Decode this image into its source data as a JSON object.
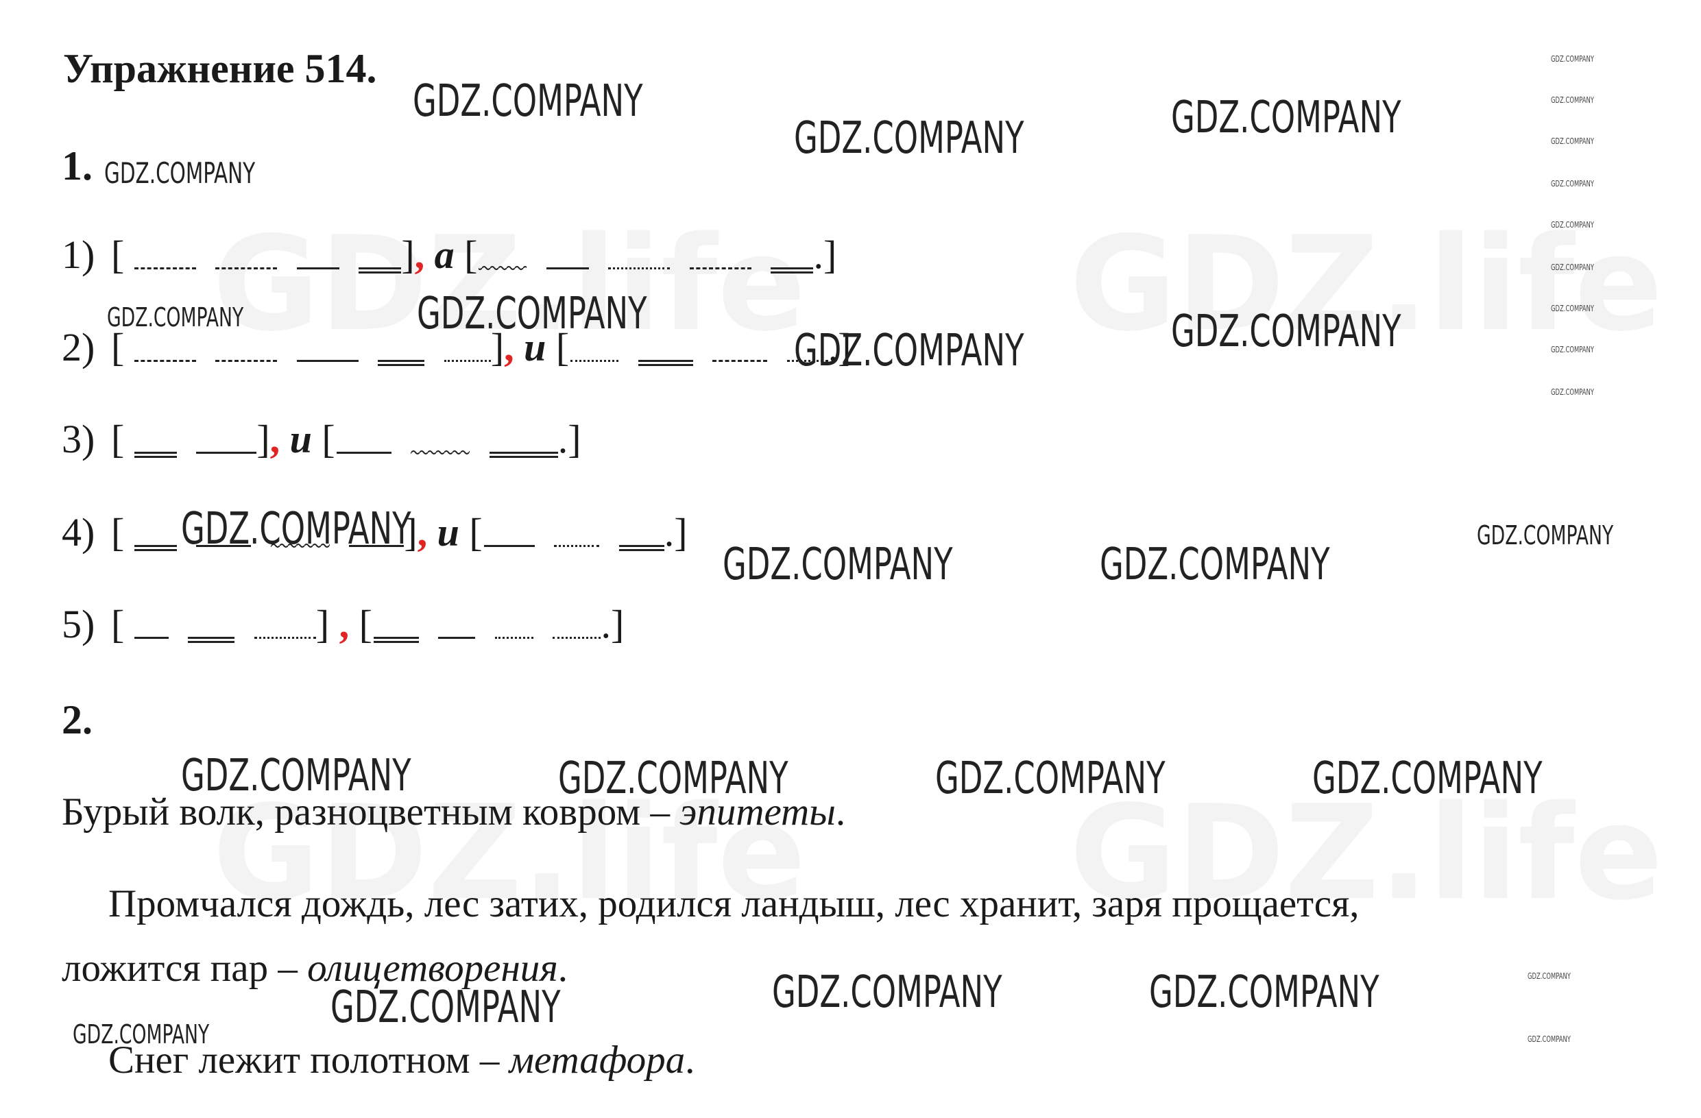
{
  "title": "Упражнение 514.",
  "section1": "1.",
  "section2": "2.",
  "schemes": [
    {
      "num": "1)",
      "open": "[",
      "close": "]",
      "comma": ",",
      "conj": "а",
      "open2": "[",
      "close2": "]"
    },
    {
      "num": "2)",
      "open": "[",
      "close": "]",
      "comma": ",",
      "conj": "и",
      "open2": "[",
      "close2": "]"
    },
    {
      "num": "3)",
      "open": "[",
      "close": "]",
      "comma": ",",
      "conj": "и",
      "open2": "[",
      "close2": "]"
    },
    {
      "num": "4)",
      "open": "[",
      "close": "]",
      "comma": ",",
      "conj": "и",
      "open2": "[",
      "close2": "]"
    },
    {
      "num": "5)",
      "open": "[",
      "close": "]",
      "comma": ",",
      "conj": "",
      "open2": "[",
      "close2": "]"
    }
  ],
  "period": ".",
  "lines": {
    "epithets": {
      "text": "Бурый волк, разноцветным ковром – ",
      "term": "эпитеты",
      "end": "."
    },
    "personification_1": {
      "text": "Промчался дождь, лес затих, родился ландыш, лес хранит, заря прощается,"
    },
    "personification_2": {
      "text": "ложится пар – ",
      "term": "олицетворения",
      "end": "."
    },
    "metaphor": {
      "text": "Снег лежит полотном – ",
      "term": "метафора",
      "end": "."
    }
  },
  "watermark": {
    "text": "GDZ.COMPANY",
    "ghost": "GDZ.life"
  }
}
